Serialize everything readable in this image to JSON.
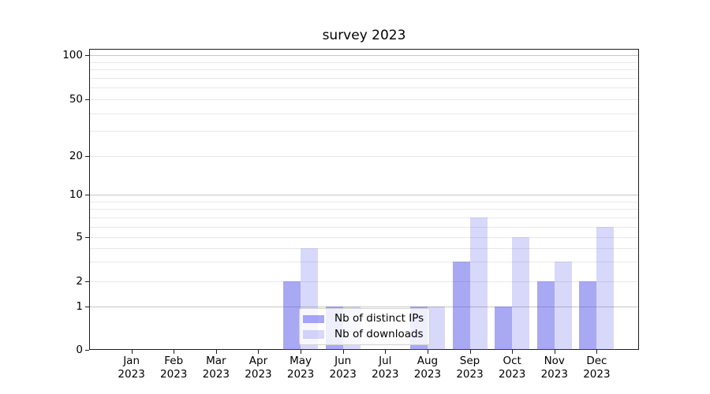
{
  "figure": {
    "background_color": "#ffffff",
    "axis_color": "#1c1c1c",
    "grid_major_color": "#c6c6c6",
    "grid_minor_color": "#e8e8e8"
  },
  "chart_data": {
    "type": "bar",
    "title": "survey 2023",
    "categories": [
      "Jan",
      "Feb",
      "Mar",
      "Apr",
      "May",
      "Jun",
      "Jul",
      "Aug",
      "Sep",
      "Oct",
      "Nov",
      "Dec"
    ],
    "x_tick_line2": "2023",
    "series": [
      {
        "name": "Nb of distinct IPs",
        "color": "rgba(70,70,230,0.47)",
        "values": [
          0,
          0,
          0,
          0,
          2,
          1,
          0,
          1,
          3,
          1,
          2,
          2
        ]
      },
      {
        "name": "Nb of downloads",
        "color": "rgba(70,70,230,0.21)",
        "values": [
          0,
          0,
          0,
          0,
          4,
          1,
          0,
          1,
          7,
          5,
          3,
          6
        ]
      }
    ],
    "yticks": [
      0,
      1,
      2,
      5,
      10,
      20,
      50,
      100
    ],
    "y_minor_gridlines": [
      2,
      3,
      4,
      5,
      6,
      7,
      8,
      9,
      20,
      30,
      40,
      50,
      60,
      70,
      80,
      90
    ],
    "y_decade_gridlines": [
      1,
      10,
      100
    ],
    "ylim": [
      0,
      110
    ],
    "xlabel": "",
    "ylabel": "",
    "scale": "symlog",
    "grid": "horizontal major+minor",
    "legend_position": "inside lower-center"
  }
}
